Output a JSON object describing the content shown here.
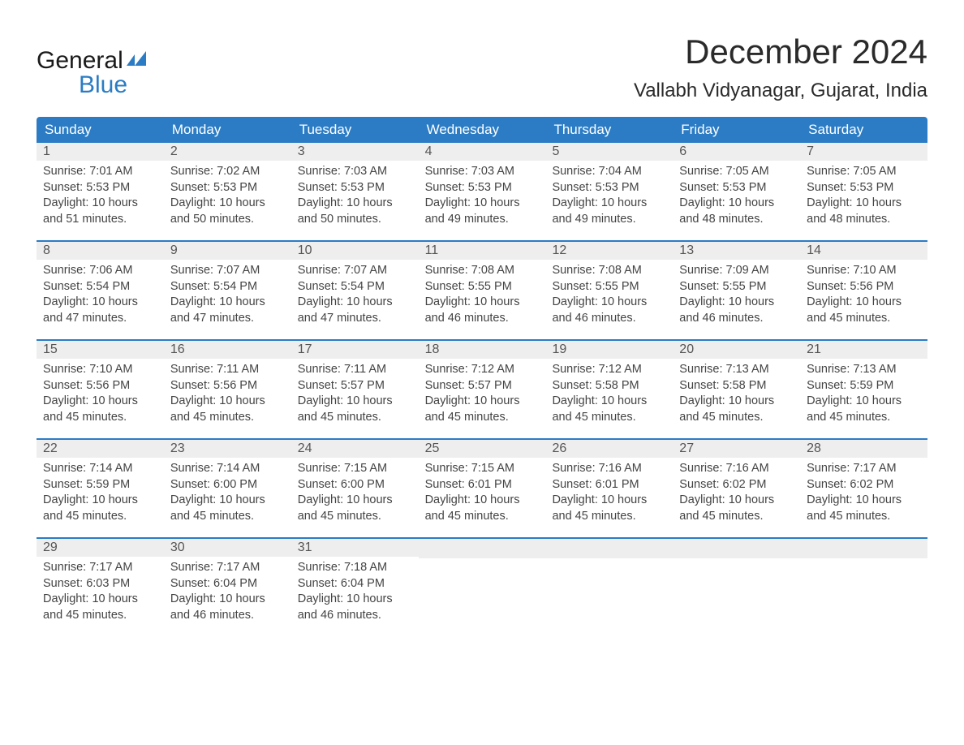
{
  "logo": {
    "line1": "General",
    "line2": "Blue",
    "icon_color": "#2b7cc4"
  },
  "title": "December 2024",
  "location": "Vallabh Vidyanagar, Gujarat, India",
  "colors": {
    "header_bg": "#2b7cc4",
    "header_text": "#ffffff",
    "daynum_bg": "#eeeeee",
    "border": "#2b7cc4",
    "text": "#444444"
  },
  "weekdays": [
    "Sunday",
    "Monday",
    "Tuesday",
    "Wednesday",
    "Thursday",
    "Friday",
    "Saturday"
  ],
  "weeks": [
    [
      {
        "day": "1",
        "sunrise": "Sunrise: 7:01 AM",
        "sunset": "Sunset: 5:53 PM",
        "daylight1": "Daylight: 10 hours",
        "daylight2": "and 51 minutes."
      },
      {
        "day": "2",
        "sunrise": "Sunrise: 7:02 AM",
        "sunset": "Sunset: 5:53 PM",
        "daylight1": "Daylight: 10 hours",
        "daylight2": "and 50 minutes."
      },
      {
        "day": "3",
        "sunrise": "Sunrise: 7:03 AM",
        "sunset": "Sunset: 5:53 PM",
        "daylight1": "Daylight: 10 hours",
        "daylight2": "and 50 minutes."
      },
      {
        "day": "4",
        "sunrise": "Sunrise: 7:03 AM",
        "sunset": "Sunset: 5:53 PM",
        "daylight1": "Daylight: 10 hours",
        "daylight2": "and 49 minutes."
      },
      {
        "day": "5",
        "sunrise": "Sunrise: 7:04 AM",
        "sunset": "Sunset: 5:53 PM",
        "daylight1": "Daylight: 10 hours",
        "daylight2": "and 49 minutes."
      },
      {
        "day": "6",
        "sunrise": "Sunrise: 7:05 AM",
        "sunset": "Sunset: 5:53 PM",
        "daylight1": "Daylight: 10 hours",
        "daylight2": "and 48 minutes."
      },
      {
        "day": "7",
        "sunrise": "Sunrise: 7:05 AM",
        "sunset": "Sunset: 5:53 PM",
        "daylight1": "Daylight: 10 hours",
        "daylight2": "and 48 minutes."
      }
    ],
    [
      {
        "day": "8",
        "sunrise": "Sunrise: 7:06 AM",
        "sunset": "Sunset: 5:54 PM",
        "daylight1": "Daylight: 10 hours",
        "daylight2": "and 47 minutes."
      },
      {
        "day": "9",
        "sunrise": "Sunrise: 7:07 AM",
        "sunset": "Sunset: 5:54 PM",
        "daylight1": "Daylight: 10 hours",
        "daylight2": "and 47 minutes."
      },
      {
        "day": "10",
        "sunrise": "Sunrise: 7:07 AM",
        "sunset": "Sunset: 5:54 PM",
        "daylight1": "Daylight: 10 hours",
        "daylight2": "and 47 minutes."
      },
      {
        "day": "11",
        "sunrise": "Sunrise: 7:08 AM",
        "sunset": "Sunset: 5:55 PM",
        "daylight1": "Daylight: 10 hours",
        "daylight2": "and 46 minutes."
      },
      {
        "day": "12",
        "sunrise": "Sunrise: 7:08 AM",
        "sunset": "Sunset: 5:55 PM",
        "daylight1": "Daylight: 10 hours",
        "daylight2": "and 46 minutes."
      },
      {
        "day": "13",
        "sunrise": "Sunrise: 7:09 AM",
        "sunset": "Sunset: 5:55 PM",
        "daylight1": "Daylight: 10 hours",
        "daylight2": "and 46 minutes."
      },
      {
        "day": "14",
        "sunrise": "Sunrise: 7:10 AM",
        "sunset": "Sunset: 5:56 PM",
        "daylight1": "Daylight: 10 hours",
        "daylight2": "and 45 minutes."
      }
    ],
    [
      {
        "day": "15",
        "sunrise": "Sunrise: 7:10 AM",
        "sunset": "Sunset: 5:56 PM",
        "daylight1": "Daylight: 10 hours",
        "daylight2": "and 45 minutes."
      },
      {
        "day": "16",
        "sunrise": "Sunrise: 7:11 AM",
        "sunset": "Sunset: 5:56 PM",
        "daylight1": "Daylight: 10 hours",
        "daylight2": "and 45 minutes."
      },
      {
        "day": "17",
        "sunrise": "Sunrise: 7:11 AM",
        "sunset": "Sunset: 5:57 PM",
        "daylight1": "Daylight: 10 hours",
        "daylight2": "and 45 minutes."
      },
      {
        "day": "18",
        "sunrise": "Sunrise: 7:12 AM",
        "sunset": "Sunset: 5:57 PM",
        "daylight1": "Daylight: 10 hours",
        "daylight2": "and 45 minutes."
      },
      {
        "day": "19",
        "sunrise": "Sunrise: 7:12 AM",
        "sunset": "Sunset: 5:58 PM",
        "daylight1": "Daylight: 10 hours",
        "daylight2": "and 45 minutes."
      },
      {
        "day": "20",
        "sunrise": "Sunrise: 7:13 AM",
        "sunset": "Sunset: 5:58 PM",
        "daylight1": "Daylight: 10 hours",
        "daylight2": "and 45 minutes."
      },
      {
        "day": "21",
        "sunrise": "Sunrise: 7:13 AM",
        "sunset": "Sunset: 5:59 PM",
        "daylight1": "Daylight: 10 hours",
        "daylight2": "and 45 minutes."
      }
    ],
    [
      {
        "day": "22",
        "sunrise": "Sunrise: 7:14 AM",
        "sunset": "Sunset: 5:59 PM",
        "daylight1": "Daylight: 10 hours",
        "daylight2": "and 45 minutes."
      },
      {
        "day": "23",
        "sunrise": "Sunrise: 7:14 AM",
        "sunset": "Sunset: 6:00 PM",
        "daylight1": "Daylight: 10 hours",
        "daylight2": "and 45 minutes."
      },
      {
        "day": "24",
        "sunrise": "Sunrise: 7:15 AM",
        "sunset": "Sunset: 6:00 PM",
        "daylight1": "Daylight: 10 hours",
        "daylight2": "and 45 minutes."
      },
      {
        "day": "25",
        "sunrise": "Sunrise: 7:15 AM",
        "sunset": "Sunset: 6:01 PM",
        "daylight1": "Daylight: 10 hours",
        "daylight2": "and 45 minutes."
      },
      {
        "day": "26",
        "sunrise": "Sunrise: 7:16 AM",
        "sunset": "Sunset: 6:01 PM",
        "daylight1": "Daylight: 10 hours",
        "daylight2": "and 45 minutes."
      },
      {
        "day": "27",
        "sunrise": "Sunrise: 7:16 AM",
        "sunset": "Sunset: 6:02 PM",
        "daylight1": "Daylight: 10 hours",
        "daylight2": "and 45 minutes."
      },
      {
        "day": "28",
        "sunrise": "Sunrise: 7:17 AM",
        "sunset": "Sunset: 6:02 PM",
        "daylight1": "Daylight: 10 hours",
        "daylight2": "and 45 minutes."
      }
    ],
    [
      {
        "day": "29",
        "sunrise": "Sunrise: 7:17 AM",
        "sunset": "Sunset: 6:03 PM",
        "daylight1": "Daylight: 10 hours",
        "daylight2": "and 45 minutes."
      },
      {
        "day": "30",
        "sunrise": "Sunrise: 7:17 AM",
        "sunset": "Sunset: 6:04 PM",
        "daylight1": "Daylight: 10 hours",
        "daylight2": "and 46 minutes."
      },
      {
        "day": "31",
        "sunrise": "Sunrise: 7:18 AM",
        "sunset": "Sunset: 6:04 PM",
        "daylight1": "Daylight: 10 hours",
        "daylight2": "and 46 minutes."
      },
      null,
      null,
      null,
      null
    ]
  ]
}
